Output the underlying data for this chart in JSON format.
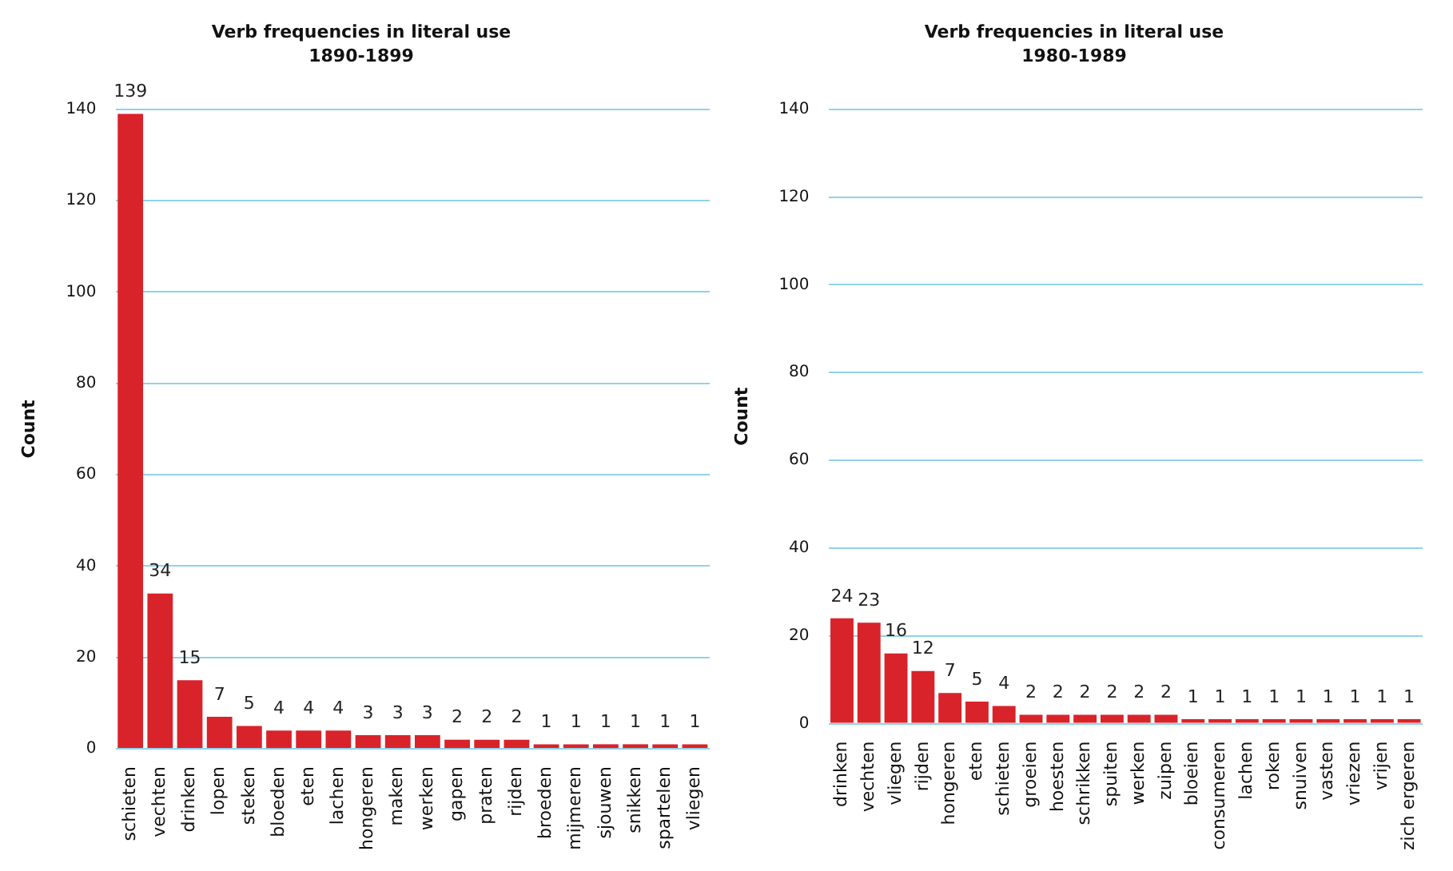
{
  "chart_data": [
    {
      "type": "bar",
      "title": "Verb frequencies in literal use",
      "subtitle": "1890-1899",
      "ylabel": "Count",
      "categories": [
        "schieten",
        "vechten",
        "drinken",
        "lopen",
        "steken",
        "bloeden",
        "eten",
        "lachen",
        "hongeren",
        "maken",
        "werken",
        "gapen",
        "praten",
        "rijden",
        "broeden",
        "mijmeren",
        "sjouwen",
        "snikken",
        "spartelen",
        "vliegen"
      ],
      "values": [
        139,
        34,
        15,
        7,
        5,
        4,
        4,
        4,
        3,
        3,
        3,
        2,
        2,
        2,
        1,
        1,
        1,
        1,
        1,
        1
      ],
      "color": "#d9232a",
      "ylim": [
        0,
        140
      ],
      "yticks": [
        0,
        20,
        40,
        60,
        80,
        100,
        120,
        140
      ],
      "grid": "y",
      "legend": false,
      "data_labels": true
    },
    {
      "type": "bar",
      "title": "Verb frequencies in literal use",
      "subtitle": "1980-1989",
      "ylabel": "Count",
      "categories": [
        "drinken",
        "vechten",
        "vliegen",
        "rijden",
        "hongeren",
        "eten",
        "schieten",
        "groeien",
        "hoesten",
        "schrikken",
        "spuiten",
        "werken",
        "zuipen",
        "bloeien",
        "consumeren",
        "lachen",
        "roken",
        "snuiven",
        "vasten",
        "vriezen",
        "vrijen",
        "zich ergeren"
      ],
      "values": [
        24,
        23,
        16,
        12,
        7,
        5,
        4,
        2,
        2,
        2,
        2,
        2,
        2,
        1,
        1,
        1,
        1,
        1,
        1,
        1,
        1,
        1
      ],
      "color": "#d9232a",
      "ylim": [
        0,
        140
      ],
      "yticks": [
        0,
        20,
        40,
        60,
        80,
        100,
        120,
        140
      ],
      "grid": "y",
      "legend": false,
      "data_labels": true
    }
  ]
}
